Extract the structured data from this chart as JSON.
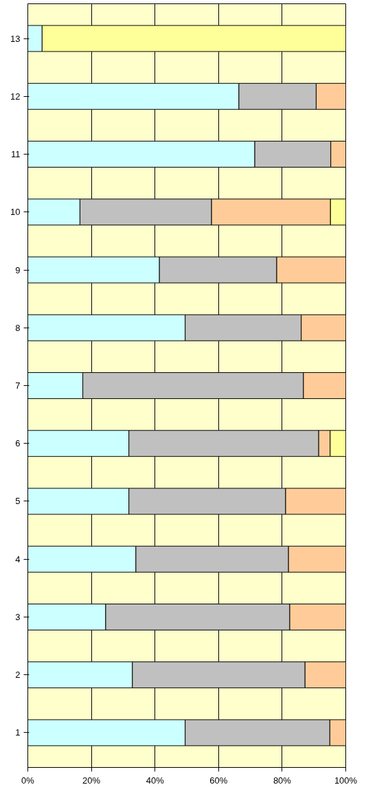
{
  "chart_data": {
    "type": "bar",
    "orientation": "horizontal",
    "stacked": true,
    "categories": [
      "13",
      "12",
      "11",
      "10",
      "9",
      "8",
      "7",
      "6",
      "5",
      "4",
      "3",
      "2",
      "1"
    ],
    "series": [
      {
        "color": "#ccffff",
        "values": [
          4.5,
          66.4,
          71.4,
          16.4,
          41.4,
          49.5,
          17.3,
          31.8,
          31.8,
          34.0,
          24.5,
          32.9,
          49.5
        ]
      },
      {
        "color": "#c0c0c0",
        "values": [
          null,
          24.3,
          23.9,
          41.4,
          36.9,
          36.5,
          69.4,
          59.7,
          49.3,
          48.0,
          57.9,
          54.3,
          45.5
        ]
      },
      {
        "color": "#ffcc99",
        "values": [
          null,
          9.3,
          4.7,
          37.4,
          21.7,
          14.0,
          13.3,
          3.6,
          18.9,
          18.0,
          17.6,
          12.8,
          5.0
        ]
      },
      {
        "color": "#ffff99",
        "values": [
          95.5,
          null,
          null,
          4.8,
          null,
          null,
          null,
          4.9,
          null,
          null,
          null,
          null,
          null
        ]
      }
    ],
    "xlim": [
      0,
      100
    ],
    "xticks": [
      {
        "value": 0,
        "label": "0%"
      },
      {
        "value": 20,
        "label": "20%"
      },
      {
        "value": 40,
        "label": "40%"
      },
      {
        "value": 60,
        "label": "60%"
      },
      {
        "value": 80,
        "label": "80%"
      },
      {
        "value": 100,
        "label": "100%"
      }
    ],
    "grid": "x"
  }
}
